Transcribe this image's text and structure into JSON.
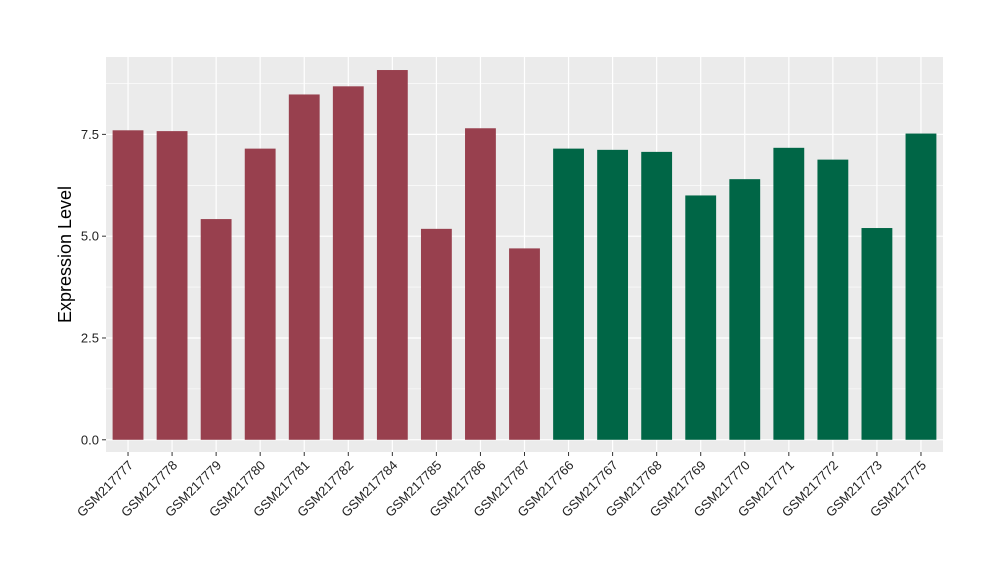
{
  "chart_data": {
    "type": "bar",
    "title": "",
    "xlabel": "",
    "ylabel": "Expression Level",
    "ylim": [
      -0.3,
      9.4
    ],
    "yticks": [
      0.0,
      2.5,
      5.0,
      7.5
    ],
    "ytick_labels": [
      "0.0",
      "2.5",
      "5.0",
      "7.5"
    ],
    "grid": true,
    "legend": "none",
    "categories": [
      "GSM217777",
      "GSM217778",
      "GSM217779",
      "GSM217780",
      "GSM217781",
      "GSM217782",
      "GSM217784",
      "GSM217785",
      "GSM217786",
      "GSM217787",
      "GSM217766",
      "GSM217767",
      "GSM217768",
      "GSM217769",
      "GSM217770",
      "GSM217771",
      "GSM217772",
      "GSM217773",
      "GSM217775"
    ],
    "values": [
      7.6,
      7.58,
      5.42,
      7.15,
      8.48,
      8.68,
      9.08,
      5.18,
      7.65,
      4.7,
      7.15,
      7.12,
      7.07,
      6.0,
      6.4,
      7.17,
      6.88,
      5.2,
      7.52
    ],
    "bar_colors": [
      "#98404e",
      "#98404e",
      "#98404e",
      "#98404e",
      "#98404e",
      "#98404e",
      "#98404e",
      "#98404e",
      "#98404e",
      "#98404e",
      "#006646",
      "#006646",
      "#006646",
      "#006646",
      "#006646",
      "#006646",
      "#006646",
      "#006646",
      "#006646"
    ],
    "panel_color": "#ebebeb",
    "grid_color": "#ffffff"
  }
}
